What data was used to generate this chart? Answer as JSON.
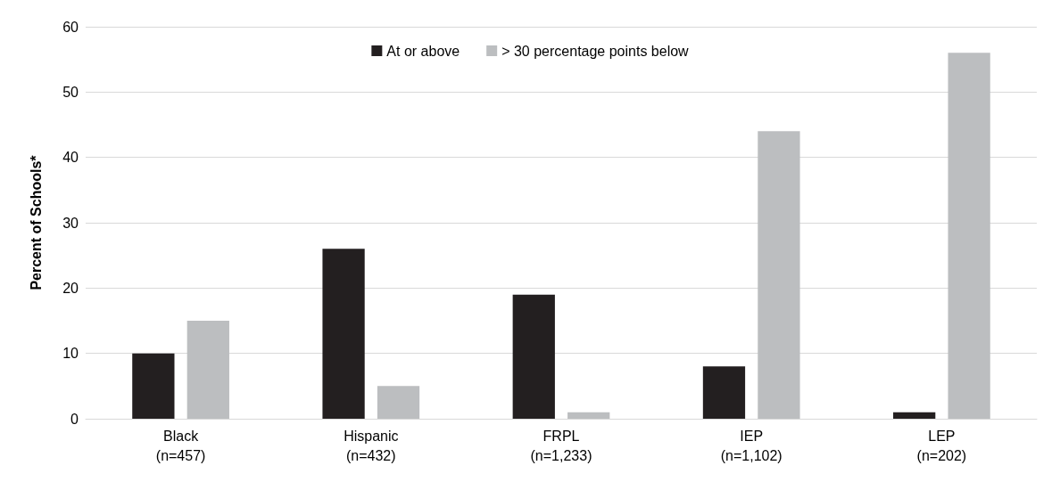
{
  "chart_data": {
    "type": "bar",
    "ylabel": "Percent of Schools*",
    "categories": [
      "Black\n(n=457)",
      "Hispanic\n(n=432)",
      "FRPL\n(n=1,233)",
      "IEP\n(n=1,102)",
      "LEP\n(n=202)"
    ],
    "series": [
      {
        "name": "At or above",
        "color": "#231f20",
        "values": [
          10,
          26,
          19,
          8,
          1
        ]
      },
      {
        "name": "> 30 percentage points below",
        "color": "#bcbec0",
        "values": [
          15,
          5,
          1,
          44,
          56
        ]
      }
    ],
    "ylim": [
      0,
      60
    ],
    "yticks": [
      0,
      10,
      20,
      30,
      40,
      50,
      60
    ],
    "grid": "y",
    "legend": "top"
  }
}
